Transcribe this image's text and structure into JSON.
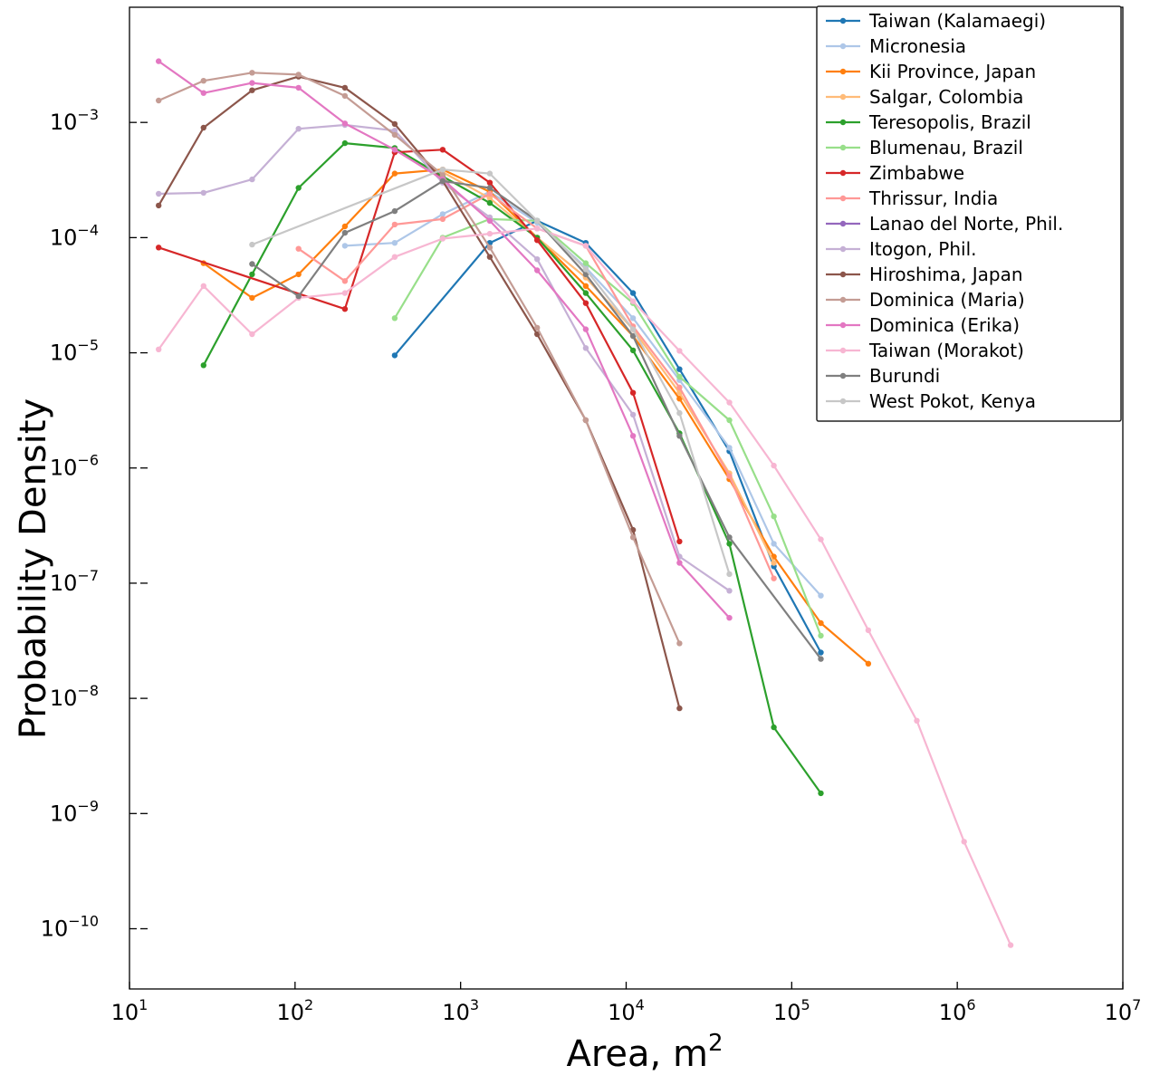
{
  "chart_data": {
    "type": "line",
    "xlabel": "Area, m",
    "xlabel_sup": "2",
    "ylabel": "Probability Density",
    "xscale": "log",
    "yscale": "log",
    "xlim": [
      10,
      10000000
    ],
    "ylim": [
      3e-11,
      0.01
    ],
    "x_ticks": [
      {
        "base": "10",
        "exp": "1",
        "value": 10
      },
      {
        "base": "10",
        "exp": "2",
        "value": 100
      },
      {
        "base": "10",
        "exp": "3",
        "value": 1000
      },
      {
        "base": "10",
        "exp": "4",
        "value": 10000
      },
      {
        "base": "10",
        "exp": "5",
        "value": 100000
      },
      {
        "base": "10",
        "exp": "6",
        "value": 1000000
      },
      {
        "base": "10",
        "exp": "7",
        "value": 10000000
      }
    ],
    "y_ticks": [
      {
        "base": "10",
        "exp": "−3",
        "value": 0.001
      },
      {
        "base": "10",
        "exp": "−4",
        "value": 0.0001
      },
      {
        "base": "10",
        "exp": "−5",
        "value": 1e-05
      },
      {
        "base": "10",
        "exp": "−6",
        "value": 1e-06
      },
      {
        "base": "10",
        "exp": "−7",
        "value": 1e-07
      },
      {
        "base": "10",
        "exp": "−8",
        "value": 1e-08
      },
      {
        "base": "10",
        "exp": "−9",
        "value": 1e-09
      },
      {
        "base": "10",
        "exp": "−10",
        "value": 1e-10
      }
    ],
    "legend_position": "top-right",
    "grid": false,
    "series": [
      {
        "name": "Taiwan (Kalamaegi)",
        "color": "#1f77b4",
        "x": [
          400,
          1500,
          2900,
          5700,
          11000,
          21000,
          42000,
          78000,
          150000
        ],
        "y": [
          9.5e-06,
          9e-05,
          0.00014,
          9e-05,
          3.3e-05,
          7.2e-06,
          1.4e-06,
          1.4e-07,
          2.5e-08
        ]
      },
      {
        "name": "Micronesia",
        "color": "#aec7e8",
        "x": [
          200,
          400,
          780,
          1500,
          2900,
          5700,
          11000,
          21000,
          42000,
          78000,
          150000
        ],
        "y": [
          8.5e-05,
          9e-05,
          0.00016,
          0.00025,
          0.000135,
          5.5e-05,
          2e-05,
          5.8e-06,
          1.5e-06,
          2.2e-07,
          7.8e-08
        ]
      },
      {
        "name": "Kii Province, Japan",
        "color": "#ff7f0e",
        "x": [
          28,
          55,
          105,
          200,
          400,
          780,
          1500,
          2900,
          5700,
          11000,
          21000,
          42000,
          78000,
          150000,
          290000
        ],
        "y": [
          6e-05,
          3e-05,
          4.8e-05,
          0.000125,
          0.00036,
          0.00039,
          0.00025,
          0.0001,
          3.8e-05,
          1.4e-05,
          4e-06,
          8e-07,
          1.7e-07,
          4.5e-08,
          2e-08
        ]
      },
      {
        "name": "Salgar, Colombia",
        "color": "#ffbb78",
        "x": [
          780,
          1500,
          2900,
          5700,
          11000,
          21000,
          42000,
          78000
        ],
        "y": [
          0.00037,
          0.00022,
          0.0001,
          4.5e-05,
          1.6e-05,
          4.5e-06,
          9e-07,
          1.5e-07
        ]
      },
      {
        "name": "Teresopolis, Brazil",
        "color": "#2ca02c",
        "x": [
          28,
          55,
          105,
          200,
          400,
          780,
          1500,
          2900,
          5700,
          11000,
          21000,
          42000,
          78000,
          150000
        ],
        "y": [
          7.8e-06,
          4.8e-05,
          0.00027,
          0.00066,
          0.0006,
          0.00034,
          0.0002,
          0.0001,
          3.3e-05,
          1.05e-05,
          2e-06,
          2.2e-07,
          5.6e-09,
          1.5e-09
        ]
      },
      {
        "name": "Blumenau, Brazil",
        "color": "#98df8a",
        "x": [
          400,
          780,
          1500,
          2900,
          5700,
          11000,
          21000,
          42000,
          78000,
          150000
        ],
        "y": [
          2e-05,
          0.0001,
          0.000145,
          0.00014,
          6e-05,
          2.7e-05,
          6.2e-06,
          2.6e-06,
          3.8e-07,
          3.5e-08
        ]
      },
      {
        "name": "Zimbabwe",
        "color": "#d62728",
        "x": [
          15,
          200,
          400,
          780,
          1500,
          2900,
          5700,
          11000,
          21000
        ],
        "y": [
          8.2e-05,
          2.4e-05,
          0.00055,
          0.00058,
          0.0003,
          9.5e-05,
          2.7e-05,
          4.5e-06,
          2.3e-07
        ]
      },
      {
        "name": "Thrissur, India",
        "color": "#ff9896",
        "x": [
          105,
          200,
          400,
          780,
          1500,
          2900,
          5700,
          11000,
          21000,
          42000,
          78000
        ],
        "y": [
          8e-05,
          4.2e-05,
          0.00013,
          0.000145,
          0.00024,
          0.00012,
          8.5e-05,
          1.7e-05,
          5e-06,
          8.5e-07,
          1.1e-07
        ]
      },
      {
        "name": "Lanao del Norte, Phil.",
        "color": "#9467bd",
        "x": [],
        "y": []
      },
      {
        "name": "Itogon, Phil.",
        "color": "#c5b0d5",
        "x": [
          15,
          28,
          55,
          105,
          200,
          400,
          780,
          1500,
          2900,
          5700,
          11000,
          21000,
          42000
        ],
        "y": [
          0.00024,
          0.000245,
          0.00032,
          0.00088,
          0.00095,
          0.00085,
          0.0003,
          0.00015,
          6.5e-05,
          1.1e-05,
          2.9e-06,
          1.7e-07,
          8.6e-08
        ]
      },
      {
        "name": "Hiroshima, Japan",
        "color": "#8c564b",
        "x": [
          15,
          28,
          55,
          105,
          200,
          400,
          780,
          1500,
          2900,
          5700,
          11000,
          21000
        ],
        "y": [
          0.00019,
          0.0009,
          0.0019,
          0.0025,
          0.002,
          0.00097,
          0.00031,
          6.8e-05,
          1.45e-05,
          2.6e-06,
          2.9e-07,
          8.2e-09
        ]
      },
      {
        "name": "Dominica (Maria)",
        "color": "#c49c94",
        "x": [
          15,
          28,
          55,
          105,
          200,
          400,
          780,
          1500,
          2900,
          5700,
          11000,
          21000
        ],
        "y": [
          0.00155,
          0.0023,
          0.0027,
          0.0026,
          0.0017,
          0.00078,
          0.00035,
          8.2e-05,
          1.65e-05,
          2.6e-06,
          2.5e-07,
          3e-08
        ]
      },
      {
        "name": "Dominica (Erika)",
        "color": "#e377c2",
        "x": [
          15,
          28,
          55,
          105,
          200,
          400,
          780,
          1500,
          2900,
          5700,
          11000,
          21000,
          42000
        ],
        "y": [
          0.0034,
          0.0018,
          0.0022,
          0.002,
          0.00098,
          0.00058,
          0.00032,
          0.00014,
          5.2e-05,
          1.6e-05,
          1.9e-06,
          1.5e-07,
          5e-08
        ]
      },
      {
        "name": "Taiwan (Morakot)",
        "color": "#f7b6d2",
        "x": [
          15,
          28,
          55,
          105,
          200,
          400,
          780,
          1500,
          2900,
          5700,
          11000,
          21000,
          42000,
          78000,
          150000,
          290000,
          570000,
          1100000,
          2100000
        ],
        "y": [
          1.07e-05,
          3.8e-05,
          1.45e-05,
          3e-05,
          3.3e-05,
          6.8e-05,
          9.8e-05,
          0.000108,
          0.00012,
          8.5e-05,
          2.8e-05,
          1.04e-05,
          3.7e-06,
          1.05e-06,
          2.4e-07,
          3.9e-08,
          6.4e-09,
          5.7e-10,
          7.2e-11
        ]
      },
      {
        "name": "Burundi",
        "color": "#7f7f7f",
        "x": [
          55,
          105,
          200,
          400,
          780,
          1500,
          2900,
          5700,
          11000,
          21000,
          42000,
          150000
        ],
        "y": [
          5.9e-05,
          3.1e-05,
          0.00011,
          0.00017,
          0.00031,
          0.00027,
          0.00014,
          4.8e-05,
          1.4e-05,
          1.9e-06,
          2.5e-07,
          2.2e-08
        ]
      },
      {
        "name": "West Pokot, Kenya",
        "color": "#c7c7c7",
        "x": [
          55,
          780,
          1500,
          2900,
          5700,
          11000,
          21000,
          42000
        ],
        "y": [
          8.7e-05,
          0.00039,
          0.00036,
          0.00014,
          5.3e-05,
          1.6e-05,
          3e-06,
          1.2e-07
        ]
      }
    ]
  }
}
